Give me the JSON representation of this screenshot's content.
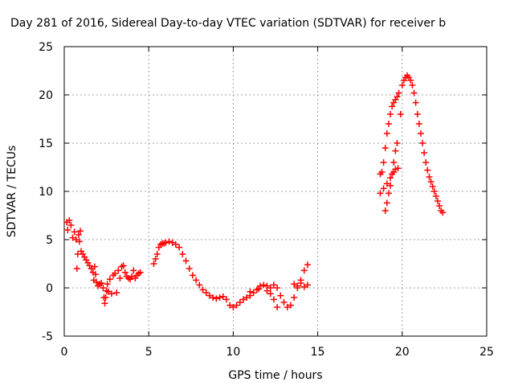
{
  "chart_data": {
    "type": "scatter",
    "title": "Day 281 of 2016, Sidereal Day-to-day VTEC variation (SDTVAR) for receiver b",
    "xlabel": "GPS time / hours",
    "ylabel": "SDTVAR / TECUs",
    "xlim": [
      0,
      25
    ],
    "ylim": [
      -5,
      25
    ],
    "x_ticks": [
      "0",
      "5",
      "10",
      "15",
      "20",
      "25"
    ],
    "y_ticks": [
      "-5",
      "0",
      "5",
      "10",
      "15",
      "20",
      "25"
    ],
    "x_tick_values": [
      0,
      5,
      10,
      15,
      20,
      25
    ],
    "y_tick_values": [
      -5,
      0,
      5,
      10,
      15,
      20,
      25
    ],
    "grid": true,
    "marker": "+",
    "color": "#ff0000",
    "series": [
      {
        "points": [
          [
            0.15,
            6.8
          ],
          [
            0.2,
            6.0
          ],
          [
            0.3,
            7.0
          ],
          [
            0.4,
            6.5
          ],
          [
            0.5,
            5.2
          ],
          [
            0.6,
            5.8
          ],
          [
            0.7,
            5.0
          ],
          [
            0.75,
            2.0
          ],
          [
            0.8,
            3.5
          ],
          [
            0.85,
            5.5
          ],
          [
            0.9,
            4.8
          ],
          [
            0.95,
            5.9
          ],
          [
            1.0,
            3.8
          ],
          [
            1.1,
            3.5
          ],
          [
            1.2,
            3.2
          ],
          [
            1.3,
            2.9
          ],
          [
            1.4,
            2.6
          ],
          [
            1.5,
            2.3
          ],
          [
            1.6,
            2.0
          ],
          [
            1.7,
            1.6
          ],
          [
            1.75,
            0.8
          ],
          [
            1.8,
            2.2
          ],
          [
            1.85,
            1.4
          ],
          [
            1.9,
            0.6
          ],
          [
            2.0,
            0.2
          ],
          [
            2.1,
            0.4
          ],
          [
            2.2,
            0.5
          ],
          [
            2.3,
            0.0
          ],
          [
            2.35,
            -1.0
          ],
          [
            2.4,
            -1.6
          ],
          [
            2.45,
            -1.0
          ],
          [
            2.5,
            -0.3
          ],
          [
            2.55,
            0.4
          ],
          [
            2.6,
            -0.4
          ],
          [
            2.7,
            0.9
          ],
          [
            2.8,
            -0.6
          ],
          [
            2.9,
            1.3
          ],
          [
            3.0,
            1.5
          ],
          [
            3.1,
            -0.5
          ],
          [
            3.2,
            1.8
          ],
          [
            3.3,
            1.0
          ],
          [
            3.4,
            2.2
          ],
          [
            3.5,
            2.3
          ],
          [
            3.6,
            1.6
          ],
          [
            3.7,
            1.2
          ],
          [
            3.8,
            1.0
          ],
          [
            3.9,
            0.9
          ],
          [
            4.0,
            1.2
          ],
          [
            4.1,
            1.8
          ],
          [
            4.2,
            1.0
          ],
          [
            4.3,
            1.3
          ],
          [
            4.4,
            1.5
          ],
          [
            4.5,
            1.6
          ]
        ]
      },
      {
        "points": [
          [
            5.3,
            2.5
          ],
          [
            5.4,
            3.0
          ],
          [
            5.5,
            3.5
          ],
          [
            5.6,
            4.2
          ],
          [
            5.7,
            4.5
          ],
          [
            5.8,
            4.6
          ],
          [
            5.9,
            4.6
          ],
          [
            6.0,
            4.7
          ],
          [
            6.2,
            4.8
          ],
          [
            6.4,
            4.7
          ],
          [
            6.6,
            4.5
          ],
          [
            6.8,
            4.2
          ],
          [
            7.0,
            3.5
          ],
          [
            7.2,
            2.8
          ],
          [
            7.4,
            2.0
          ],
          [
            7.6,
            1.3
          ],
          [
            7.8,
            0.8
          ],
          [
            8.0,
            0.3
          ],
          [
            8.2,
            -0.2
          ],
          [
            8.4,
            -0.5
          ],
          [
            8.6,
            -0.8
          ],
          [
            8.8,
            -1.0
          ],
          [
            9.0,
            -1.1
          ],
          [
            9.2,
            -1.0
          ],
          [
            9.4,
            -0.9
          ],
          [
            9.6,
            -1.2
          ],
          [
            9.8,
            -1.8
          ],
          [
            10.0,
            -2.0
          ],
          [
            10.2,
            -1.8
          ],
          [
            10.4,
            -1.5
          ],
          [
            10.6,
            -1.2
          ],
          [
            10.8,
            -1.0
          ],
          [
            11.0,
            -0.8
          ],
          [
            11.2,
            -0.5
          ],
          [
            11.4,
            -0.2
          ],
          [
            11.6,
            0.2
          ],
          [
            11.8,
            0.3
          ],
          [
            12.0,
            0.2
          ],
          [
            12.2,
            0.0
          ],
          [
            12.4,
            0.3
          ],
          [
            12.6,
            0.0
          ],
          [
            12.8,
            -0.8
          ],
          [
            13.0,
            -1.5
          ],
          [
            13.2,
            -2.0
          ],
          [
            13.4,
            -1.8
          ],
          [
            13.6,
            -1.0
          ],
          [
            13.8,
            0.0
          ],
          [
            14.0,
            0.8
          ],
          [
            14.2,
            1.8
          ],
          [
            14.4,
            2.4
          ]
        ]
      },
      {
        "points": [
          [
            11.0,
            -0.4
          ],
          [
            11.5,
            -0.1
          ],
          [
            12.0,
            -0.3
          ],
          [
            12.2,
            -0.6
          ],
          [
            12.4,
            -1.2
          ],
          [
            12.6,
            -2.0
          ],
          [
            13.6,
            0.4
          ],
          [
            13.8,
            0.2
          ],
          [
            14.0,
            0.5
          ],
          [
            14.2,
            0.1
          ],
          [
            14.4,
            0.3
          ]
        ]
      },
      {
        "points": [
          [
            18.7,
            11.8
          ],
          [
            18.8,
            12.0
          ],
          [
            18.9,
            13.0
          ],
          [
            19.0,
            14.5
          ],
          [
            19.1,
            16.0
          ],
          [
            19.2,
            17.0
          ],
          [
            19.3,
            18.0
          ],
          [
            19.4,
            18.8
          ],
          [
            19.5,
            19.2
          ],
          [
            19.6,
            19.5
          ],
          [
            19.7,
            19.8
          ],
          [
            19.8,
            20.2
          ],
          [
            19.9,
            18.0
          ],
          [
            20.0,
            21.0
          ],
          [
            20.1,
            21.5
          ],
          [
            20.2,
            21.8
          ],
          [
            20.3,
            22.0
          ],
          [
            20.4,
            21.8
          ],
          [
            20.5,
            21.5
          ],
          [
            20.6,
            21.0
          ],
          [
            20.7,
            20.2
          ],
          [
            20.8,
            19.2
          ],
          [
            20.9,
            18.0
          ],
          [
            21.0,
            17.0
          ],
          [
            21.1,
            16.0
          ],
          [
            21.2,
            15.0
          ],
          [
            21.3,
            14.0
          ],
          [
            21.4,
            13.0
          ],
          [
            21.5,
            12.2
          ],
          [
            21.6,
            11.5
          ],
          [
            21.7,
            11.0
          ],
          [
            21.8,
            10.5
          ],
          [
            21.9,
            10.0
          ],
          [
            22.0,
            9.5
          ],
          [
            22.1,
            9.0
          ],
          [
            22.2,
            8.5
          ],
          [
            22.3,
            8.0
          ],
          [
            22.4,
            7.8
          ]
        ]
      },
      {
        "points": [
          [
            18.7,
            9.8
          ],
          [
            18.9,
            10.3
          ],
          [
            19.1,
            10.8
          ],
          [
            19.3,
            11.4
          ],
          [
            19.5,
            12.0
          ],
          [
            19.6,
            12.3
          ],
          [
            19.0,
            8.0
          ],
          [
            19.1,
            8.8
          ],
          [
            19.2,
            9.8
          ],
          [
            19.3,
            10.6
          ],
          [
            19.4,
            11.8
          ],
          [
            19.5,
            13.0
          ],
          [
            19.6,
            14.2
          ],
          [
            19.7,
            15.0
          ],
          [
            19.75,
            12.4
          ]
        ]
      }
    ]
  }
}
